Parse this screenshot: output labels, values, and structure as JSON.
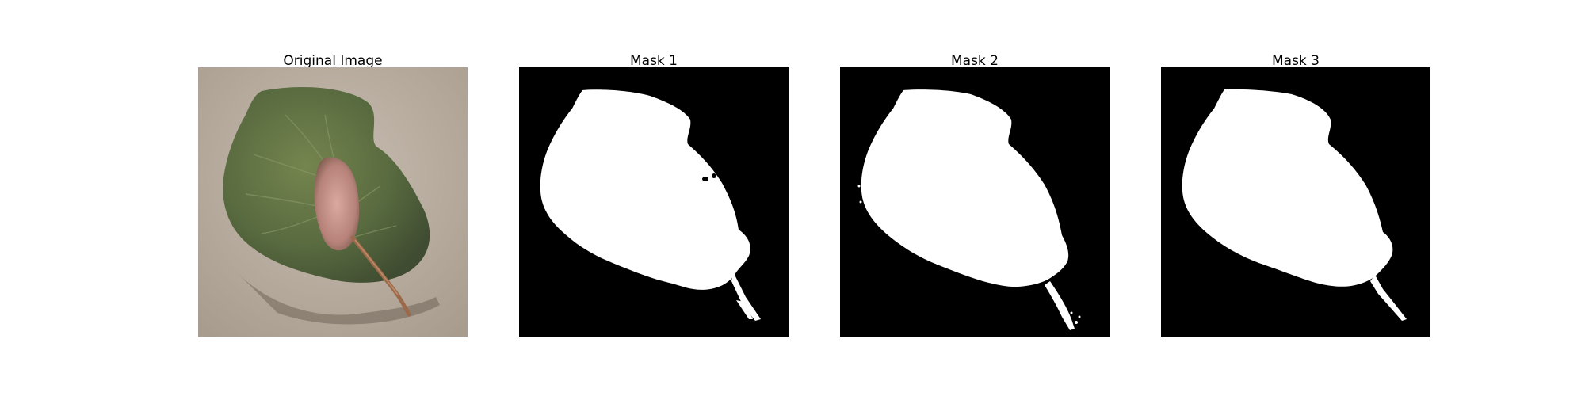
{
  "figure": {
    "panels": [
      {
        "title": "Original Image"
      },
      {
        "title": "Mask 1"
      },
      {
        "title": "Mask 2"
      },
      {
        "title": "Mask 3"
      }
    ]
  },
  "colors": {
    "background": "#ffffff",
    "mask_background": "#000000",
    "mask_foreground": "#ffffff",
    "surface": "#b8ad9f",
    "leaf_dark": "#4f5e3c",
    "leaf_mid": "#6a7a4c",
    "leaf_center": "#c8938c",
    "stem": "#9c6a4a"
  }
}
